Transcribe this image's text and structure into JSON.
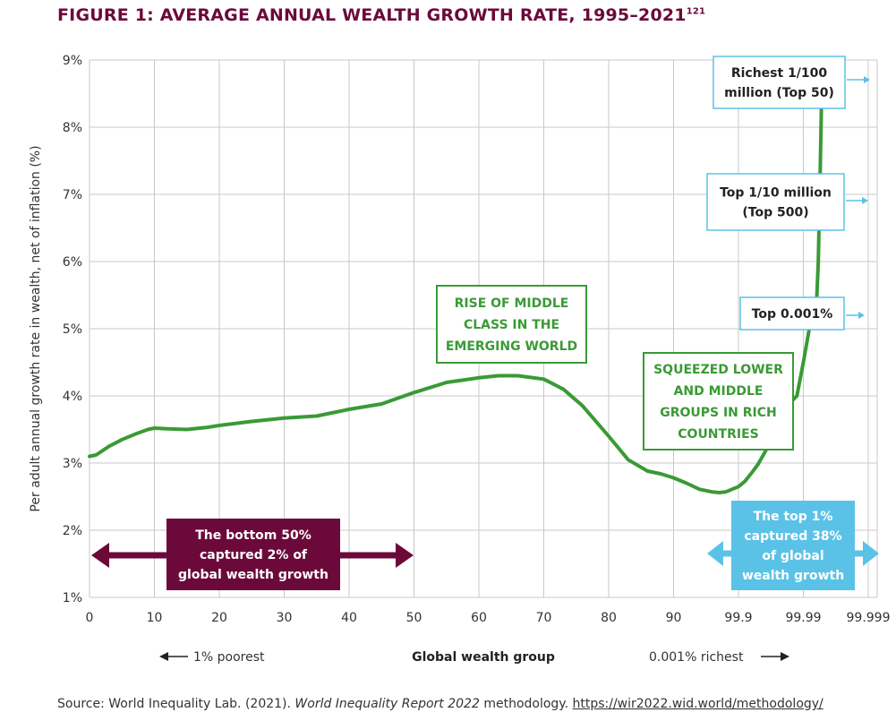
{
  "title": "FIGURE 1: AVERAGE ANNUAL WEALTH GROWTH RATE, 1995–2021",
  "title_ref": "121",
  "source": {
    "prefix": "Source: World Inequality Lab. (2021). ",
    "italic": "World Inequality Report 2022",
    "middle": " methodology. ",
    "link": "https://wir2022.wid.world/methodology/"
  },
  "colors": {
    "line": "#3a9a35",
    "bottom_box": "#6b0a3a",
    "top_box": "#5bc2e7",
    "grid": "#c8c8c8",
    "callout_border": "#5bc2e7"
  },
  "chart_data": {
    "type": "line",
    "ylabel": "Per adult annual growth rate in wealth, net of inflation (%)",
    "xlabel": "Global wealth group",
    "ylim": [
      1,
      9
    ],
    "y_ticks": [
      "1%",
      "2%",
      "3%",
      "4%",
      "5%",
      "6%",
      "7%",
      "8%",
      "9%"
    ],
    "x_ticks": [
      "0",
      "10",
      "20",
      "30",
      "40",
      "50",
      "60",
      "70",
      "80",
      "90",
      "99.9",
      "99.99",
      "99.999"
    ],
    "x_left_note": "1% poorest",
    "x_right_note": "0.001% richest",
    "grid": true,
    "series": [
      {
        "x": [
          0,
          1,
          3,
          5,
          7,
          9,
          10,
          12,
          15,
          18,
          20,
          25,
          30,
          35,
          40,
          45,
          50,
          55,
          60,
          63,
          66,
          70,
          73,
          76,
          80,
          83,
          86,
          88,
          90,
          92,
          94,
          96,
          97,
          98,
          100,
          101,
          102,
          103,
          104,
          105,
          106,
          107,
          108,
          109,
          110,
          111,
          111.5,
          112,
          112.3,
          112.6,
          112.8,
          113
        ],
        "y": [
          3.1,
          3.12,
          3.25,
          3.35,
          3.43,
          3.5,
          3.52,
          3.51,
          3.5,
          3.53,
          3.56,
          3.62,
          3.67,
          3.7,
          3.8,
          3.88,
          4.05,
          4.2,
          4.27,
          4.3,
          4.3,
          4.25,
          4.1,
          3.85,
          3.4,
          3.05,
          2.88,
          2.84,
          2.78,
          2.7,
          2.61,
          2.57,
          2.56,
          2.57,
          2.65,
          2.73,
          2.85,
          2.98,
          3.15,
          3.33,
          3.52,
          3.72,
          3.9,
          4.0,
          4.5,
          5.05,
          5.1,
          5.3,
          6.0,
          7.4,
          8.4,
          9.0
        ]
      }
    ],
    "annotations": {
      "middle_class": "RISE OF MIDDLE CLASS IN THE EMERGING WORLD",
      "squeezed": "SQUEEZED LOWER AND MIDDLE GROUPS IN RICH COUNTRIES",
      "bottom_50": "The bottom 50% captured 2% of global wealth growth",
      "top_1": "The top 1% captured 38% of global wealth growth",
      "callout_top50": "Richest 1/100 million (Top 50)",
      "callout_top500": "Top 1/10 million (Top 500)",
      "callout_top0001": "Top 0.001%"
    }
  }
}
